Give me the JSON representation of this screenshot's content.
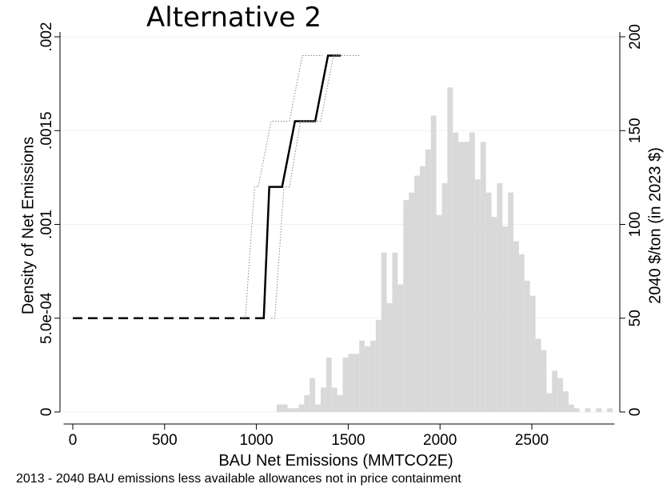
{
  "chart_data": {
    "type": "bar",
    "title": "Alternative 2",
    "xlabel": "BAU Net Emissions (MMTCO2E)",
    "ylabel_left": "Density of Net Emissions",
    "ylabel_right": "2040 $/ton (in 2023 $)",
    "note": "2013 - 2040 BAU emissions less available allowances not in price containment",
    "xlim": [
      -50,
      2950
    ],
    "ylim_left": [
      0,
      0.002
    ],
    "ylim_right": [
      0,
      200
    ],
    "x_ticks": [
      0,
      500,
      1000,
      1500,
      2000,
      2500
    ],
    "x_tick_labels": [
      "0",
      "500",
      "1000",
      "1500",
      "2000",
      "2500"
    ],
    "y_left_ticks": [
      0,
      0.0005,
      0.001,
      0.0015,
      0.002
    ],
    "y_left_tick_labels": [
      "0",
      "5.0e-04",
      ".001",
      ".0015",
      ".002"
    ],
    "y_right_ticks": [
      0,
      50,
      100,
      150,
      200
    ],
    "y_right_tick_labels": [
      "0",
      "50",
      "100",
      "150",
      "200"
    ],
    "grid": true,
    "histogram": {
      "bin_width": 30,
      "color": "#d9d9d9",
      "bins_start": [
        1110,
        1140,
        1170,
        1200,
        1230,
        1260,
        1290,
        1320,
        1350,
        1380,
        1410,
        1440,
        1470,
        1500,
        1530,
        1560,
        1590,
        1620,
        1650,
        1680,
        1710,
        1740,
        1770,
        1800,
        1830,
        1860,
        1890,
        1920,
        1950,
        1980,
        2010,
        2040,
        2070,
        2100,
        2130,
        2160,
        2190,
        2220,
        2250,
        2280,
        2310,
        2340,
        2370,
        2400,
        2430,
        2460,
        2490,
        2520,
        2550,
        2580,
        2610,
        2640,
        2670,
        2700,
        2730,
        2760,
        2790,
        2820,
        2850,
        2880,
        2910
      ],
      "density": [
        4e-05,
        4e-05,
        2e-05,
        2e-05,
        4e-05,
        9e-05,
        0.00018,
        4e-05,
        0.00013,
        0.00029,
        0.00013,
        9e-05,
        0.00029,
        0.00031,
        0.00031,
        0.00038,
        0.00035,
        0.00038,
        0.00049,
        0.00085,
        0.00058,
        0.00085,
        0.00068,
        0.00113,
        0.00117,
        0.00126,
        0.00131,
        0.0014,
        0.00158,
        0.00105,
        0.00122,
        0.00173,
        0.00149,
        0.00144,
        0.00144,
        0.00149,
        0.00124,
        0.00144,
        0.00117,
        0.00104,
        0.00122,
        0.00099,
        0.00117,
        0.00091,
        0.00084,
        0.0007,
        0.00062,
        0.00039,
        0.00033,
        0.0001,
        0.00022,
        0.00018,
        0.00011,
        4e-05,
        2e-05,
        0.0,
        2e-05,
        0.0,
        2e-05,
        0.0,
        2e-05
      ]
    },
    "series": [
      {
        "name": "",
        "style": "dashed",
        "color": "#000000",
        "x": [
          0,
          1000
        ],
        "y_right": [
          50,
          50
        ]
      },
      {
        "name": "",
        "style": "solid",
        "color": "#000000",
        "x": [
          1000,
          1040,
          1070,
          1120,
          1140,
          1210,
          1230,
          1290,
          1320,
          1390,
          1420,
          1460
        ],
        "y_right": [
          50,
          50,
          120,
          120,
          120,
          155,
          155,
          155,
          155,
          190,
          190,
          190
        ]
      },
      {
        "name": "",
        "style": "dotted",
        "color": "#888888",
        "x": [
          920,
          940,
          990,
          1010,
          1080,
          1100,
          1160,
          1180,
          1250,
          1270,
          1360
        ],
        "y_right": [
          50,
          50,
          120,
          120,
          155,
          155,
          155,
          155,
          190,
          190,
          190
        ]
      },
      {
        "name": "",
        "style": "dotted",
        "color": "#888888",
        "x": [
          1080,
          1100,
          1150,
          1180,
          1240,
          1260,
          1320,
          1350,
          1420,
          1450,
          1560
        ],
        "y_right": [
          50,
          50,
          120,
          120,
          155,
          155,
          155,
          155,
          190,
          190,
          190
        ]
      }
    ]
  }
}
